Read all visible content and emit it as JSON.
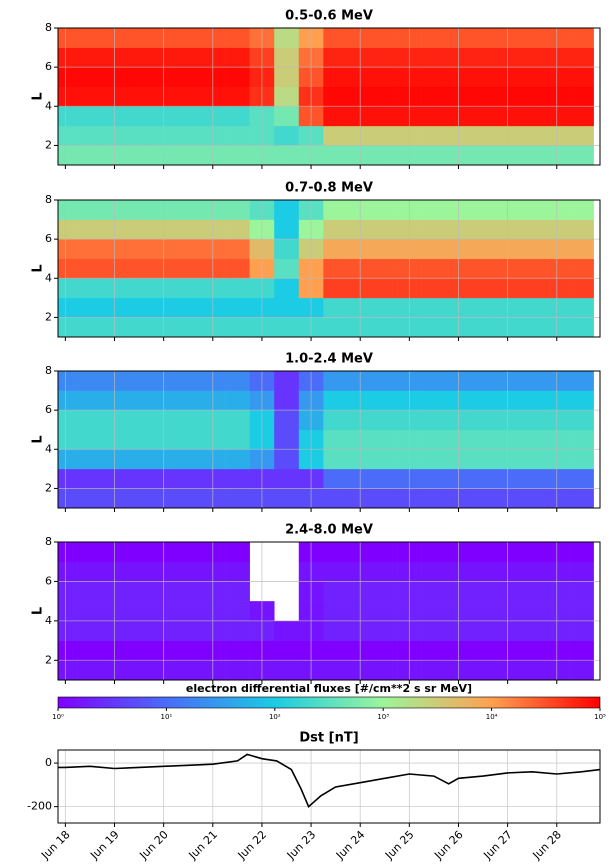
{
  "chart_data": [
    {
      "type": "heatmap",
      "title": "0.5-0.6 MeV",
      "ylabel": "L",
      "x": [
        18,
        18.5,
        19,
        19.5,
        20,
        20.5,
        21,
        21.5,
        22,
        22.5,
        23,
        23.5,
        24,
        24.5,
        25,
        25.5,
        26,
        26.5,
        27,
        27.5,
        28,
        28.5
      ],
      "y": [
        1.5,
        2.5,
        3.5,
        4.5,
        5.5,
        6.5,
        7.5
      ],
      "z": [
        [
          500.0,
          500.0,
          500.0,
          500.0,
          500.0,
          500.0,
          500.0,
          500.0,
          500.0,
          500.0,
          500.0,
          500.0,
          500.0,
          500.0,
          500.0,
          500.0,
          500.0,
          500.0,
          500.0,
          500.0,
          500.0,
          500.0
        ],
        [
          300.0,
          300.0,
          300.0,
          300.0,
          300.0,
          300.0,
          300.0,
          300.0,
          300.0,
          200.0,
          300.0,
          3000.0,
          3000.0,
          3000.0,
          3000.0,
          3000.0,
          3000.0,
          3000.0,
          3000.0,
          3000.0,
          3000.0,
          3000.0
        ],
        [
          200.0,
          200.0,
          200.0,
          200.0,
          200.0,
          200.0,
          200.0,
          200.0,
          300.0,
          500.0,
          30000.0,
          80000.0,
          80000.0,
          80000.0,
          80000.0,
          80000.0,
          80000.0,
          80000.0,
          80000.0,
          80000.0,
          80000.0,
          80000.0
        ],
        [
          80000.0,
          80000.0,
          80000.0,
          80000.0,
          80000.0,
          80000.0,
          80000.0,
          80000.0,
          50000.0,
          2000.0,
          50000.0,
          90000.0,
          90000.0,
          90000.0,
          90000.0,
          90000.0,
          90000.0,
          90000.0,
          90000.0,
          90000.0,
          90000.0,
          90000.0
        ],
        [
          90000.0,
          90000.0,
          90000.0,
          90000.0,
          90000.0,
          90000.0,
          90000.0,
          90000.0,
          60000.0,
          3000.0,
          30000.0,
          80000.0,
          80000.0,
          80000.0,
          80000.0,
          80000.0,
          80000.0,
          80000.0,
          80000.0,
          80000.0,
          80000.0,
          80000.0
        ],
        [
          70000.0,
          70000.0,
          70000.0,
          70000.0,
          70000.0,
          70000.0,
          70000.0,
          70000.0,
          40000.0,
          3000.0,
          20000.0,
          60000.0,
          60000.0,
          60000.0,
          60000.0,
          60000.0,
          60000.0,
          60000.0,
          60000.0,
          60000.0,
          60000.0,
          60000.0
        ],
        [
          30000.0,
          30000.0,
          30000.0,
          30000.0,
          30000.0,
          30000.0,
          30000.0,
          30000.0,
          20000.0,
          2000.0,
          10000.0,
          30000.0,
          30000.0,
          30000.0,
          30000.0,
          30000.0,
          30000.0,
          30000.0,
          30000.0,
          30000.0,
          30000.0,
          30000.0
        ]
      ],
      "xlim": [
        17.85,
        28.88
      ],
      "xticks": [
        18,
        19,
        20,
        21,
        22,
        23,
        24,
        25,
        26,
        27,
        28
      ],
      "ylim": [
        1,
        8
      ],
      "yticks": [
        2,
        4,
        6,
        8
      ],
      "grid": true
    },
    {
      "type": "heatmap",
      "title": "0.7-0.8 MeV",
      "ylabel": "L",
      "x": [
        18,
        18.5,
        19,
        19.5,
        20,
        20.5,
        21,
        21.5,
        22,
        22.5,
        23,
        23.5,
        24,
        24.5,
        25,
        25.5,
        26,
        26.5,
        27,
        27.5,
        28,
        28.5
      ],
      "y": [
        1.5,
        2.5,
        3.5,
        4.5,
        5.5,
        6.5,
        7.5
      ],
      "z": [
        [
          200.0,
          200.0,
          200.0,
          200.0,
          200.0,
          200.0,
          200.0,
          200.0,
          200.0,
          200.0,
          200.0,
          200.0,
          200.0,
          200.0,
          200.0,
          200.0,
          200.0,
          200.0,
          200.0,
          200.0,
          200.0,
          200.0
        ],
        [
          100.0,
          100.0,
          100.0,
          100.0,
          100.0,
          100.0,
          100.0,
          100.0,
          100.0,
          100.0,
          100.0,
          200.0,
          200.0,
          200.0,
          200.0,
          200.0,
          200.0,
          200.0,
          200.0,
          200.0,
          200.0,
          200.0
        ],
        [
          200.0,
          200.0,
          200.0,
          200.0,
          200.0,
          200.0,
          200.0,
          200.0,
          200.0,
          100.0,
          10000.0,
          40000.0,
          40000.0,
          40000.0,
          40000.0,
          40000.0,
          40000.0,
          40000.0,
          40000.0,
          40000.0,
          40000.0,
          40000.0
        ],
        [
          30000.0,
          30000.0,
          30000.0,
          30000.0,
          30000.0,
          30000.0,
          30000.0,
          30000.0,
          10000.0,
          300.0,
          10000.0,
          30000.0,
          30000.0,
          30000.0,
          30000.0,
          30000.0,
          30000.0,
          30000.0,
          30000.0,
          30000.0,
          30000.0,
          30000.0
        ],
        [
          20000.0,
          20000.0,
          20000.0,
          20000.0,
          20000.0,
          20000.0,
          20000.0,
          20000.0,
          5000.0,
          200.0,
          3000.0,
          8000.0,
          8000.0,
          8000.0,
          8000.0,
          8000.0,
          8000.0,
          8000.0,
          8000.0,
          8000.0,
          8000.0,
          8000.0
        ],
        [
          3000.0,
          3000.0,
          3000.0,
          3000.0,
          3000.0,
          3000.0,
          3000.0,
          3000.0,
          1000.0,
          100.0,
          1000.0,
          3000.0,
          3000.0,
          3000.0,
          3000.0,
          3000.0,
          3000.0,
          3000.0,
          3000.0,
          3000.0,
          3000.0,
          3000.0
        ],
        [
          500.0,
          500.0,
          500.0,
          500.0,
          500.0,
          500.0,
          500.0,
          500.0,
          300.0,
          100.0,
          300.0,
          1000.0,
          1000.0,
          1000.0,
          1000.0,
          1000.0,
          1000.0,
          1000.0,
          1000.0,
          1000.0,
          1000.0,
          1000.0
        ]
      ],
      "xlim": [
        17.85,
        28.88
      ],
      "xticks": [
        18,
        19,
        20,
        21,
        22,
        23,
        24,
        25,
        26,
        27,
        28
      ],
      "ylim": [
        1,
        8
      ],
      "yticks": [
        2,
        4,
        6,
        8
      ],
      "grid": true
    },
    {
      "type": "heatmap",
      "title": "1.0-2.4 MeV",
      "ylabel": "L",
      "x": [
        18,
        18.5,
        19,
        19.5,
        20,
        20.5,
        21,
        21.5,
        22,
        22.5,
        23,
        23.5,
        24,
        24.5,
        25,
        25.5,
        26,
        26.5,
        27,
        27.5,
        28,
        28.5
      ],
      "y": [
        1.5,
        2.5,
        3.5,
        4.5,
        5.5,
        6.5,
        7.5
      ],
      "z": [
        [
          5,
          5,
          5,
          5,
          5,
          5,
          5,
          5,
          5,
          5,
          5,
          5,
          5,
          5,
          5,
          5,
          5,
          5,
          5,
          5,
          5,
          5
        ],
        [
          3,
          3,
          3,
          3,
          3,
          3,
          3,
          3,
          3,
          3,
          3,
          10,
          10,
          10,
          10,
          10,
          10,
          10,
          10,
          10,
          10,
          10
        ],
        [
          50,
          50,
          50,
          50,
          50,
          50,
          50,
          50,
          30,
          5,
          100,
          300,
          300,
          300,
          300,
          300,
          300,
          300,
          300,
          300,
          300,
          300
        ],
        [
          200,
          200,
          200,
          200,
          200,
          200,
          200,
          200,
          100,
          5,
          100,
          300,
          300,
          300,
          300,
          300,
          300,
          300,
          300,
          300,
          300,
          300
        ],
        [
          200,
          200,
          200,
          200,
          200,
          200,
          200,
          200,
          100,
          5,
          50,
          200,
          200,
          200,
          200,
          200,
          200,
          200,
          200,
          200,
          200,
          200
        ],
        [
          50,
          50,
          50,
          50,
          50,
          50,
          50,
          50,
          30,
          3,
          30,
          100,
          100,
          100,
          100,
          100,
          100,
          100,
          100,
          100,
          100,
          100
        ],
        [
          20,
          20,
          20,
          20,
          20,
          20,
          20,
          20,
          10,
          3,
          10,
          30,
          30,
          30,
          30,
          30,
          30,
          30,
          30,
          30,
          30,
          30
        ]
      ],
      "xlim": [
        17.85,
        28.88
      ],
      "xticks": [
        18,
        19,
        20,
        21,
        22,
        23,
        24,
        25,
        26,
        27,
        28
      ],
      "ylim": [
        1,
        8
      ],
      "yticks": [
        2,
        4,
        6,
        8
      ],
      "grid": true
    },
    {
      "type": "heatmap",
      "title": "2.4-8.0 MeV",
      "ylabel": "L",
      "x": [
        18,
        18.5,
        19,
        19.5,
        20,
        20.5,
        21,
        21.5,
        22,
        22.5,
        23,
        23.5,
        24,
        24.5,
        25,
        25.5,
        26,
        26.5,
        27,
        27.5,
        28,
        28.5
      ],
      "y": [
        1.5,
        2.5,
        3.5,
        4.5,
        5.5,
        6.5,
        7.5
      ],
      "z": [
        [
          1.5,
          1.5,
          1.5,
          1.5,
          1.5,
          1.5,
          1.5,
          1.5,
          1.5,
          1.5,
          1.5,
          1.5,
          1.5,
          1.5,
          1.5,
          1.5,
          1.5,
          1.5,
          1.5,
          1.5,
          1.5,
          1.5
        ],
        [
          1,
          1,
          1,
          1,
          1,
          1,
          1,
          1,
          1,
          1,
          1,
          1,
          1,
          1,
          1,
          1,
          1,
          1,
          1,
          1,
          1,
          1
        ],
        [
          2,
          2,
          2,
          2,
          2,
          2,
          2,
          2,
          2,
          1.5,
          1.5,
          2,
          2,
          2,
          2,
          2,
          2,
          2,
          2,
          2,
          2,
          2
        ],
        [
          2,
          2,
          2,
          2,
          2,
          2,
          2,
          2,
          1.5,
          null,
          1.5,
          2,
          2,
          2,
          2,
          2,
          2,
          2,
          2,
          2,
          2,
          2
        ],
        [
          2,
          2,
          2,
          2,
          2,
          2,
          2,
          2,
          null,
          null,
          1.5,
          2,
          2,
          2,
          2,
          2,
          2,
          2,
          2,
          2,
          2,
          2
        ],
        [
          1.5,
          1.5,
          1.5,
          1.5,
          1.5,
          1.5,
          1.5,
          1.5,
          null,
          null,
          1.5,
          1.5,
          1.5,
          1.5,
          1.5,
          1.5,
          1.5,
          1.5,
          1.5,
          1.5,
          1.5,
          1.5
        ],
        [
          1,
          1,
          1,
          1,
          1,
          1,
          1,
          1,
          null,
          null,
          1,
          1,
          1,
          1,
          1,
          1,
          1,
          1,
          1,
          1,
          1,
          1
        ]
      ],
      "xlim": [
        17.85,
        28.88
      ],
      "xticks": [
        18,
        19,
        20,
        21,
        22,
        23,
        24,
        25,
        26,
        27,
        28
      ],
      "ylim": [
        1,
        8
      ],
      "yticks": [
        2,
        4,
        6,
        8
      ],
      "grid": true
    },
    {
      "type": "colorbar",
      "label": "electron differential fluxes [#/cm**2 s sr MeV]",
      "lim": [
        1,
        100000
      ],
      "log": true,
      "ticks": [
        {
          "value": 1,
          "label": "10⁰"
        },
        {
          "value": 10,
          "label": "10¹"
        },
        {
          "value": 100,
          "label": "10²"
        },
        {
          "value": 1000,
          "label": "10³"
        },
        {
          "value": 10000,
          "label": "10⁴"
        },
        {
          "value": 100000,
          "label": "10⁵"
        }
      ],
      "colors": [
        "#8000ff",
        "#4a6cf9",
        "#1ccbe4",
        "#9cf59b",
        "#ffa050",
        "#ff0000"
      ]
    },
    {
      "type": "line",
      "title": "Dst [nT]",
      "color": "#000000",
      "x": [
        17.85,
        18,
        18.5,
        19,
        19.5,
        20,
        20.5,
        21,
        21.5,
        21.7,
        22,
        22.3,
        22.6,
        22.8,
        22.95,
        23.2,
        23.5,
        24,
        24.5,
        25,
        25.5,
        25.8,
        26,
        26.5,
        27,
        27.5,
        28,
        28.5,
        28.88
      ],
      "values": [
        -20,
        -20,
        -15,
        -25,
        -20,
        -15,
        -10,
        -5,
        10,
        40,
        20,
        10,
        -30,
        -120,
        -200,
        -150,
        -110,
        -90,
        -70,
        -50,
        -60,
        -95,
        -70,
        -60,
        -45,
        -40,
        -50,
        -40,
        -30
      ],
      "xlim": [
        17.85,
        28.88
      ],
      "xticks": [
        {
          "value": 18,
          "label": "Jun 18"
        },
        {
          "value": 19,
          "label": "Jun 19"
        },
        {
          "value": 20,
          "label": "Jun 20"
        },
        {
          "value": 21,
          "label": "Jun 21"
        },
        {
          "value": 22,
          "label": "Jun 22"
        },
        {
          "value": 23,
          "label": "Jun 23"
        },
        {
          "value": 24,
          "label": "Jun 24"
        },
        {
          "value": 25,
          "label": "Jun 25"
        },
        {
          "value": 26,
          "label": "Jun 26"
        },
        {
          "value": 27,
          "label": "Jun 27"
        },
        {
          "value": 28,
          "label": "Jun 28"
        }
      ],
      "ylim": [
        -275,
        60
      ],
      "yticks": [
        -200,
        0
      ],
      "grid": true
    }
  ]
}
